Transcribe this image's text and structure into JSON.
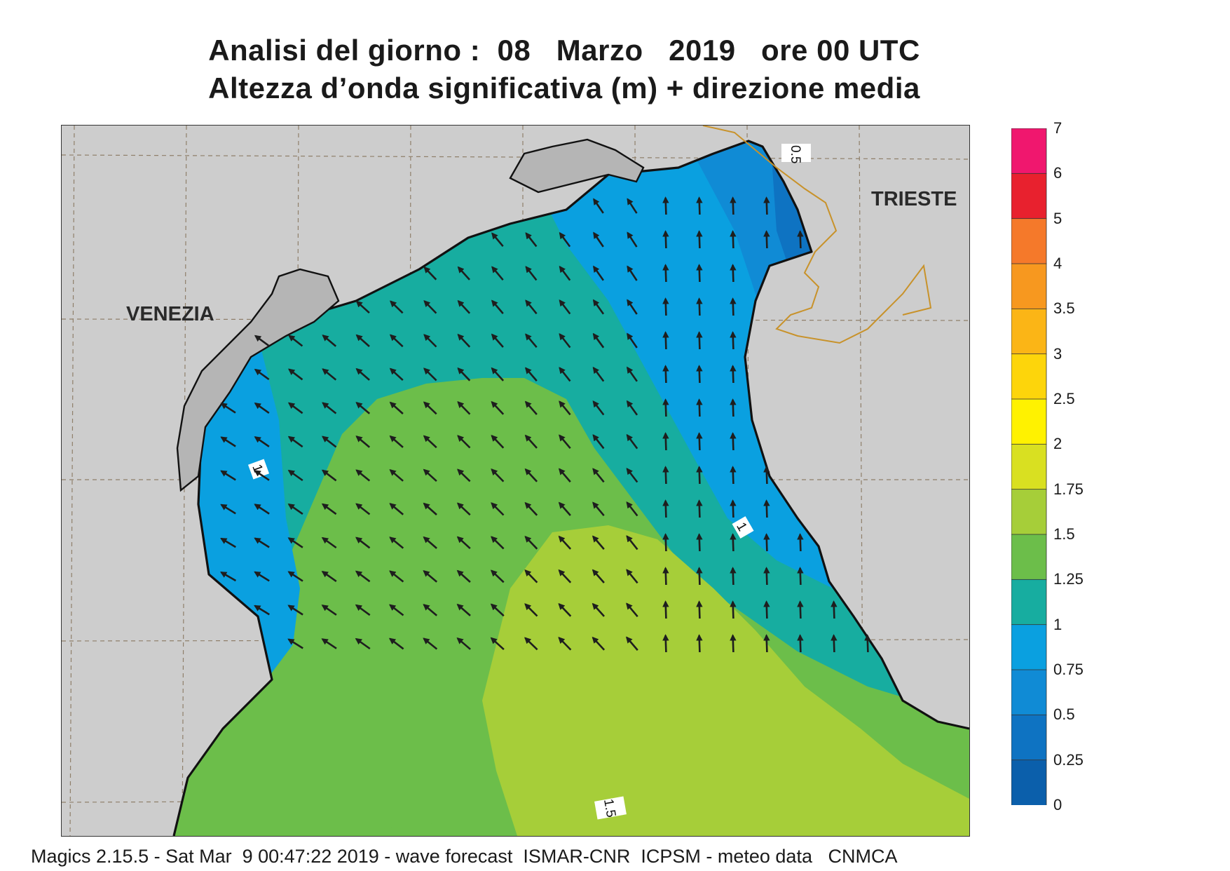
{
  "title_line1": "Analisi del giorno :  08   Marzo   2019   ore 00 UTC",
  "title_line2": "Altezza d’onda significativa (m) + direzione media",
  "footer": "Magics 2.15.5 - Sat Mar  9 00:47:22 2019 - wave forecast  ISMAR-CNR  ICPSM - meteo data   CNMCA",
  "cities": {
    "venezia": "VENEZIA",
    "trieste": "TRIESTE"
  },
  "contour_labels": [
    "0.5",
    "1",
    "1",
    "1.5"
  ],
  "legend": {
    "labels": [
      "7",
      "6",
      "5",
      "4",
      "3.5",
      "3",
      "2.5",
      "2",
      "1.75",
      "1.5",
      "1.25",
      "1",
      "0.75",
      "0.5",
      "0.25",
      "0"
    ],
    "colors": [
      "#f0176e",
      "#e8212e",
      "#f5792a",
      "#f7981f",
      "#fbb516",
      "#fdd50b",
      "#fff200",
      "#d9e021",
      "#a6ce39",
      "#6cbe4a",
      "#17ada0",
      "#0aa0e0",
      "#108bd5",
      "#0e73c2",
      "#0b5fab"
    ]
  },
  "colors": {
    "land": "#cdcdcd",
    "city_land": "#b5b5b5",
    "coast": "#111111",
    "border": "#c8922a",
    "grid": "#8f7f6a",
    "arrow": "#1e1e1e"
  }
}
